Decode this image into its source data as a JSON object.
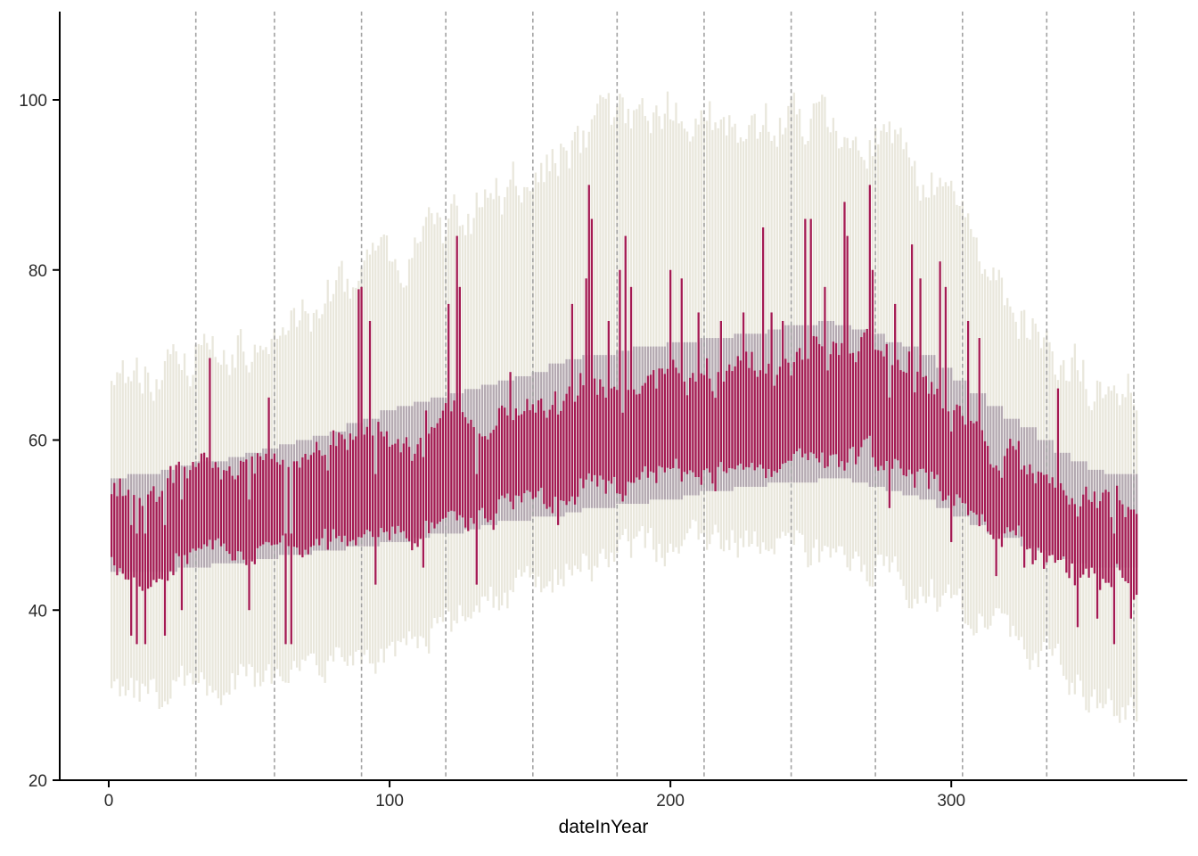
{
  "figure": {
    "background": "#ffffff"
  },
  "chart_data": {
    "type": "bar",
    "title": "",
    "xlabel": "dateInYear",
    "ylabel": "",
    "description": "Daily temperature ranges over one year: light beige bars = record high/low range per day, mauve band = normal range (climate normals), crimson bars = actual daily high/low range. Dashed vertical lines mark month boundaries.",
    "x_ticks": [
      0,
      100,
      200,
      300
    ],
    "y_ticks": [
      20,
      40,
      60,
      80,
      100
    ],
    "xlim": [
      -18,
      384
    ],
    "ylim": [
      20,
      110.4
    ],
    "grid": "monthly dashed vertical lines only",
    "legend_position": "none",
    "month_gridline_days": [
      31,
      59,
      90,
      120,
      151,
      181,
      212,
      243,
      273,
      304,
      334,
      365
    ],
    "days_in_year": 366,
    "series": [
      {
        "name": "record range",
        "role": "background-bars",
        "color": "#e9e7dc"
      },
      {
        "name": "normal range",
        "role": "band-bars",
        "color": "#b4a9b1"
      },
      {
        "name": "actual daily range",
        "role": "foreground-bars",
        "color": "#a41a52"
      }
    ],
    "record_range_anchors": {
      "day": [
        1,
        15,
        31,
        59,
        90,
        120,
        151,
        181,
        196,
        212,
        243,
        273,
        304,
        319,
        334,
        350,
        366
      ],
      "high": [
        67,
        68,
        70,
        73,
        79,
        84,
        92,
        97,
        99,
        98,
        97,
        96,
        88,
        78,
        71,
        67,
        66
      ],
      "low": [
        31,
        30,
        31,
        32,
        34,
        38,
        43,
        47,
        48,
        48.5,
        47.5,
        45,
        41,
        38,
        34,
        30,
        29
      ]
    },
    "normal_range_anchors": {
      "day": [
        1,
        15,
        46,
        74,
        105,
        135,
        166,
        196,
        228,
        258,
        288,
        319,
        350,
        366
      ],
      "high": [
        55.5,
        56,
        58.2,
        60.2,
        64,
        66.5,
        69.5,
        71.3,
        72.5,
        74,
        70.5,
        63,
        56.3,
        56
      ],
      "low": [
        44.3,
        44.5,
        45.5,
        47,
        48,
        50,
        51.5,
        53,
        54.5,
        55.5,
        53.5,
        48.5,
        45,
        44.8
      ]
    },
    "actual_range_anchors": {
      "day": [
        1,
        15,
        31,
        45,
        59,
        75,
        90,
        105,
        120,
        135,
        151,
        165,
        181,
        195,
        212,
        228,
        243,
        258,
        273,
        288,
        304,
        319,
        334,
        350,
        366
      ],
      "high": [
        53,
        54,
        58,
        57,
        58,
        58,
        61,
        60,
        62,
        61,
        63,
        66,
        66,
        67,
        68,
        68,
        69,
        70,
        70,
        68,
        63,
        58,
        56,
        52,
        53
      ],
      "low": [
        45,
        43,
        48,
        47,
        47,
        47.5,
        49,
        49,
        50.5,
        51,
        52.5,
        54,
        55,
        56,
        56.5,
        57,
        57.5,
        58,
        57.5,
        56,
        53,
        49,
        46,
        43,
        44
      ]
    },
    "actual_high_spikes": [
      [
        36,
        73
      ],
      [
        57,
        65
      ],
      [
        89,
        80
      ],
      [
        90,
        78
      ],
      [
        93,
        74
      ],
      [
        121,
        76
      ],
      [
        124,
        84
      ],
      [
        125,
        78
      ],
      [
        143,
        68
      ],
      [
        165,
        76
      ],
      [
        170,
        79
      ],
      [
        171,
        90
      ],
      [
        172,
        86
      ],
      [
        178,
        74
      ],
      [
        182,
        80
      ],
      [
        184,
        84
      ],
      [
        186,
        78
      ],
      [
        200,
        80
      ],
      [
        204,
        79
      ],
      [
        210,
        75
      ],
      [
        218,
        74
      ],
      [
        226,
        75
      ],
      [
        233,
        85
      ],
      [
        236,
        75
      ],
      [
        240,
        74
      ],
      [
        248,
        86
      ],
      [
        250,
        86
      ],
      [
        255,
        78
      ],
      [
        262,
        88
      ],
      [
        263,
        84
      ],
      [
        271,
        90
      ],
      [
        272,
        80
      ],
      [
        280,
        76
      ],
      [
        286,
        83
      ],
      [
        289,
        79
      ],
      [
        296,
        81
      ],
      [
        298,
        78
      ],
      [
        306,
        74
      ],
      [
        310,
        72
      ],
      [
        338,
        71
      ]
    ],
    "actual_low_dips": [
      [
        8,
        37
      ],
      [
        10,
        36
      ],
      [
        13,
        36
      ],
      [
        20,
        37
      ],
      [
        26,
        40
      ],
      [
        50,
        40
      ],
      [
        63,
        36
      ],
      [
        65,
        36
      ],
      [
        95,
        43
      ],
      [
        112,
        45
      ],
      [
        131,
        43
      ],
      [
        160,
        50
      ],
      [
        278,
        52
      ],
      [
        300,
        48
      ],
      [
        316,
        44
      ],
      [
        326,
        45
      ],
      [
        345,
        38
      ],
      [
        352,
        39
      ],
      [
        358,
        36
      ],
      [
        364,
        39
      ]
    ],
    "noise": {
      "seed": 20167,
      "record_high_amp": 4.2,
      "record_low_amp": 3.2,
      "walk_amp": 2.2,
      "actual_high_amp": 1.8,
      "actual_low_amp": 1.4
    },
    "colors": {
      "record_fill": "#e9e7dc",
      "normal_fill": "#b4a9b1",
      "actual_fill": "#a41a52",
      "gridline": "#a3a3a3",
      "axis_line": "#000000",
      "tick_label": "#2b2b2b",
      "background": "#ffffff"
    }
  }
}
